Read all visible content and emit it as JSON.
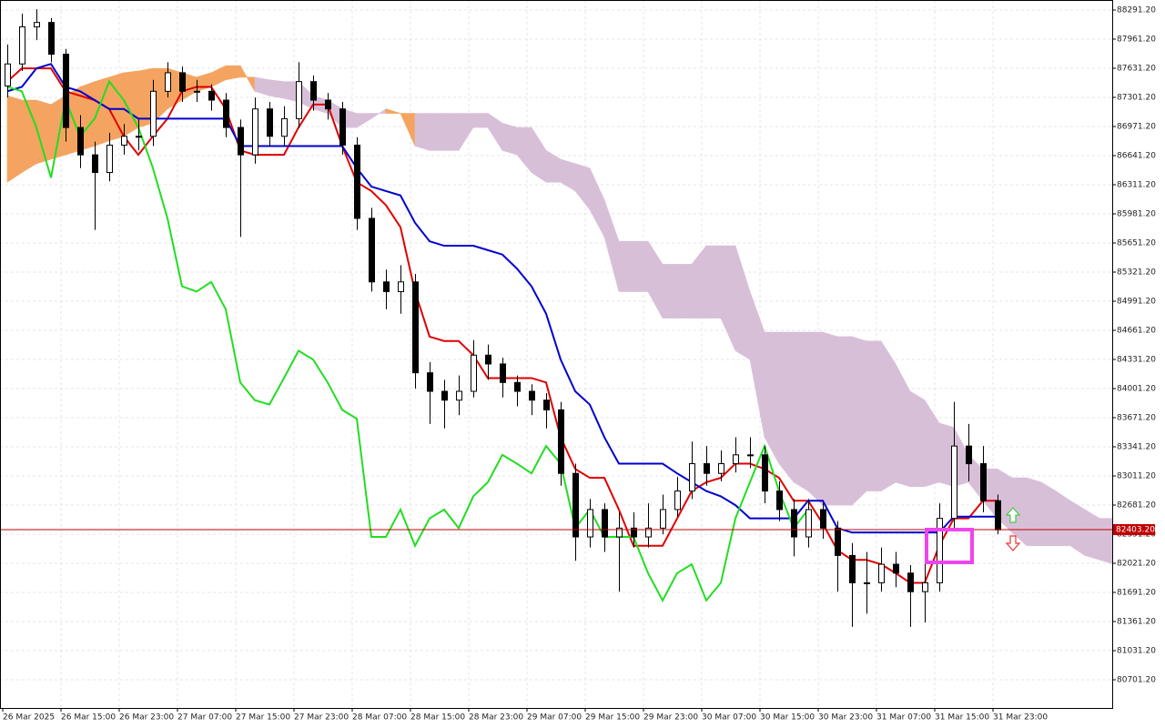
{
  "chart_data": {
    "type": "candlestick",
    "ylim": [
      80381.5,
      88404.6
    ],
    "yticks": [
      {
        "value": 88291.2,
        "label": "88291.20"
      },
      {
        "value": 87961.2,
        "label": "87961.20"
      },
      {
        "value": 87631.2,
        "label": "87631.20"
      },
      {
        "value": 87301.2,
        "label": "87301.20"
      },
      {
        "value": 86971.2,
        "label": "86971.20"
      },
      {
        "value": 86641.2,
        "label": "86641.20"
      },
      {
        "value": 86311.2,
        "label": "86311.20"
      },
      {
        "value": 85981.2,
        "label": "85981.20"
      },
      {
        "value": 85651.2,
        "label": "85651.20"
      },
      {
        "value": 85321.2,
        "label": "85321.20"
      },
      {
        "value": 84991.2,
        "label": "84991.20"
      },
      {
        "value": 84661.2,
        "label": "84661.20"
      },
      {
        "value": 84331.2,
        "label": "84331.20"
      },
      {
        "value": 84001.2,
        "label": "84001.20"
      },
      {
        "value": 83671.2,
        "label": "83671.20"
      },
      {
        "value": 83341.2,
        "label": "83341.20"
      },
      {
        "value": 83011.2,
        "label": "83011.20"
      },
      {
        "value": 82681.2,
        "label": "82681.20"
      },
      {
        "value": 82351.2,
        "label": "82351.20"
      },
      {
        "value": 82021.2,
        "label": "82021.20"
      },
      {
        "value": 81691.2,
        "label": "81691.20"
      },
      {
        "value": 81361.2,
        "label": "81361.20"
      },
      {
        "value": 81031.2,
        "label": "81031.20"
      },
      {
        "value": 80701.2,
        "label": "80701.20"
      }
    ],
    "x_labels": [
      "26 Mar 2025",
      "26 Mar 15:00",
      "26 Mar 23:00",
      "27 Mar 07:00",
      "27 Mar 15:00",
      "27 Mar 23:00",
      "28 Mar 07:00",
      "28 Mar 15:00",
      "28 Mar 23:00",
      "29 Mar 07:00",
      "29 Mar 15:00",
      "29 Mar 23:00",
      "30 Mar 07:00",
      "30 Mar 15:00",
      "30 Mar 23:00",
      "31 Mar 07:00",
      "31 Mar 15:00",
      "31 Mar 23:00"
    ],
    "grid": true,
    "bull_color": "#ffffff",
    "bear_color": "#000000",
    "ohlc": [
      [
        87430,
        87900,
        87300,
        87680
      ],
      [
        87680,
        88250,
        87600,
        88100
      ],
      [
        88100,
        88300,
        87950,
        88150
      ],
      [
        88150,
        88200,
        87700,
        87790
      ],
      [
        87790,
        87850,
        86800,
        86960
      ],
      [
        86960,
        87100,
        86500,
        86650
      ],
      [
        86650,
        86800,
        85800,
        86450
      ],
      [
        86450,
        86900,
        86350,
        86760
      ],
      [
        86760,
        87000,
        86650,
        86860
      ],
      [
        86860,
        87050,
        86700,
        86860
      ],
      [
        86860,
        87500,
        86750,
        87370
      ],
      [
        87370,
        87700,
        87300,
        87580
      ],
      [
        87580,
        87650,
        87250,
        87370
      ],
      [
        87370,
        87500,
        87250,
        87370
      ],
      [
        87370,
        87450,
        87150,
        87270
      ],
      [
        87270,
        87350,
        86850,
        86960
      ],
      [
        86960,
        87050,
        85720,
        86650
      ],
      [
        86650,
        87300,
        86550,
        87170
      ],
      [
        87170,
        87250,
        86750,
        86860
      ],
      [
        86860,
        87200,
        86750,
        87060
      ],
      [
        87060,
        87700,
        86950,
        87480
      ],
      [
        87480,
        87550,
        87150,
        87270
      ],
      [
        87270,
        87350,
        87050,
        87170
      ],
      [
        87170,
        87250,
        86650,
        86760
      ],
      [
        86760,
        86850,
        85800,
        85930
      ],
      [
        85930,
        86050,
        85100,
        85210
      ],
      [
        85210,
        85350,
        84900,
        85100
      ],
      [
        85100,
        85400,
        84850,
        85210
      ],
      [
        85210,
        85300,
        84000,
        84180
      ],
      [
        84180,
        84300,
        83600,
        83970
      ],
      [
        83970,
        84100,
        83550,
        83870
      ],
      [
        83870,
        84150,
        83700,
        83970
      ],
      [
        83970,
        84550,
        83900,
        84380
      ],
      [
        84380,
        84500,
        84100,
        84280
      ],
      [
        84280,
        84350,
        83900,
        84070
      ],
      [
        84070,
        84150,
        83800,
        83970
      ],
      [
        83970,
        84050,
        83700,
        83870
      ],
      [
        83870,
        83950,
        83550,
        83760
      ],
      [
        83760,
        83850,
        82900,
        83040
      ],
      [
        83040,
        83150,
        82050,
        82320
      ],
      [
        82320,
        82750,
        82200,
        82630
      ],
      [
        82630,
        82700,
        82150,
        82320
      ],
      [
        82320,
        82600,
        81700,
        82420
      ],
      [
        82420,
        82600,
        82200,
        82320
      ],
      [
        82320,
        82700,
        82200,
        82420
      ],
      [
        82420,
        82800,
        82350,
        82630
      ],
      [
        82630,
        83000,
        82550,
        82840
      ],
      [
        82840,
        83400,
        82750,
        83150
      ],
      [
        83150,
        83350,
        82900,
        83040
      ],
      [
        83040,
        83300,
        82950,
        83150
      ],
      [
        83150,
        83450,
        83050,
        83250
      ],
      [
        83250,
        83450,
        83100,
        83250
      ],
      [
        83250,
        83350,
        82700,
        82840
      ],
      [
        82840,
        82950,
        82500,
        82630
      ],
      [
        82630,
        82750,
        82100,
        82320
      ],
      [
        82320,
        82750,
        82200,
        82630
      ],
      [
        82630,
        82700,
        82300,
        82420
      ],
      [
        82420,
        82500,
        81700,
        82110
      ],
      [
        82110,
        82250,
        81300,
        81800
      ],
      [
        81800,
        82150,
        81450,
        81800
      ],
      [
        81800,
        82200,
        81700,
        82010
      ],
      [
        82010,
        82150,
        81750,
        81910
      ],
      [
        81910,
        82000,
        81300,
        81700
      ],
      [
        81700,
        82100,
        81350,
        81800
      ],
      [
        81800,
        82700,
        81700,
        82530
      ],
      [
        82530,
        83850,
        82400,
        83350
      ],
      [
        83350,
        83600,
        82950,
        83150
      ],
      [
        83150,
        83350,
        82600,
        82730
      ],
      [
        82730,
        82800,
        82350,
        82400
      ]
    ],
    "lines": [
      {
        "color": "#e00000",
        "values": [
          87480,
          87630,
          87630,
          87630,
          87370,
          87320,
          87270,
          87170,
          86860,
          86650,
          86860,
          87060,
          87370,
          87420,
          87420,
          87170,
          86700,
          86650,
          86650,
          86650,
          86960,
          87220,
          87220,
          86750,
          86340,
          86240,
          86080,
          85830,
          85100,
          84590,
          84540,
          84540,
          84380,
          84120,
          84120,
          84120,
          84120,
          84070,
          83450,
          83090,
          82990,
          82990,
          82630,
          82220,
          82220,
          82220,
          82530,
          82840,
          82940,
          82990,
          83150,
          83150,
          83090,
          82990,
          82730,
          82730,
          82470,
          82170,
          82060,
          82060,
          82010,
          81910,
          81800,
          81800,
          82220,
          82530,
          82530,
          82730,
          82730
        ]
      },
      {
        "color": "#0000d0",
        "values": [
          87370,
          87420,
          87630,
          87680,
          87420,
          87370,
          87270,
          87170,
          87170,
          87060,
          87060,
          87060,
          87060,
          87060,
          87060,
          87060,
          86750,
          86750,
          86750,
          86750,
          86750,
          86750,
          86750,
          86750,
          86500,
          86290,
          86240,
          86190,
          85880,
          85670,
          85620,
          85620,
          85620,
          85570,
          85520,
          85360,
          85160,
          84850,
          84330,
          83970,
          83820,
          83450,
          83150,
          83150,
          83150,
          83150,
          83040,
          82940,
          82840,
          82780,
          82680,
          82530,
          82530,
          82530,
          82530,
          82730,
          82730,
          82420,
          82370,
          82370,
          82370,
          82370,
          82370,
          82370,
          82370,
          82550,
          82550,
          82550,
          82550
        ]
      },
      {
        "color": "#22dd22",
        "values": [
          87420,
          87370,
          86960,
          86390,
          87270,
          86860,
          87060,
          87480,
          87270,
          86960,
          86500,
          85930,
          85160,
          85100,
          85210,
          84900,
          84070,
          83870,
          83820,
          84120,
          84430,
          84330,
          84070,
          83760,
          83660,
          82320,
          82320,
          82630,
          82220,
          82530,
          82630,
          82420,
          82780,
          82940,
          83250,
          83150,
          83040,
          83350,
          83150,
          82420,
          82630,
          82320,
          82320,
          82320,
          81910,
          81600,
          81910,
          82010,
          81600,
          81800,
          82530,
          82940,
          83350,
          82840,
          82420,
          82630
        ]
      }
    ],
    "cloud": {
      "bull_color": "#f4a460",
      "bear_color": "#d8bfd8",
      "span_a": [
        87320,
        87270,
        87270,
        87220,
        87320,
        87420,
        87480,
        87530,
        87580,
        87600,
        87630,
        87630,
        87580,
        87530,
        87580,
        87660,
        87660,
        87370,
        87320,
        87290,
        87250,
        87170,
        87120,
        86960,
        86960,
        87060,
        87170,
        87120,
        86750,
        86700,
        86700,
        86700,
        86960,
        86960,
        86700,
        86650,
        86450,
        86340,
        86340,
        86240,
        86030,
        85720,
        85100,
        85100,
        85100,
        84800,
        84800,
        84800,
        84800,
        84800,
        84430,
        84330,
        83450,
        83150,
        82940,
        82840,
        82680,
        82680,
        82680,
        82840,
        82840,
        82940,
        82890,
        82890,
        82940,
        82890,
        82940,
        82730,
        82530,
        82370,
        82220,
        82220,
        82220,
        82220,
        82110,
        82060,
        82010
      ],
      "span_b": [
        86340,
        86450,
        86550,
        86600,
        86650,
        86700,
        86750,
        86810,
        86860,
        86960,
        87010,
        87170,
        87270,
        87370,
        87420,
        87500,
        87530,
        87530,
        87500,
        87480,
        87480,
        87320,
        87270,
        87170,
        87120,
        87120,
        87120,
        87120,
        87120,
        87120,
        87120,
        87120,
        87120,
        87120,
        87010,
        86960,
        86960,
        86700,
        86600,
        86550,
        86500,
        86140,
        85670,
        85670,
        85670,
        85410,
        85410,
        85410,
        85620,
        85620,
        85620,
        85100,
        84640,
        84640,
        84640,
        84640,
        84640,
        84590,
        84590,
        84540,
        84540,
        84280,
        83970,
        83870,
        83610,
        83560,
        83250,
        83090,
        83090,
        82990,
        82990,
        82940,
        82840,
        82730,
        82630,
        82530,
        82530
      ]
    },
    "last_price": {
      "value": 82403.2,
      "label": "82403.20",
      "color": "#c00000"
    }
  }
}
